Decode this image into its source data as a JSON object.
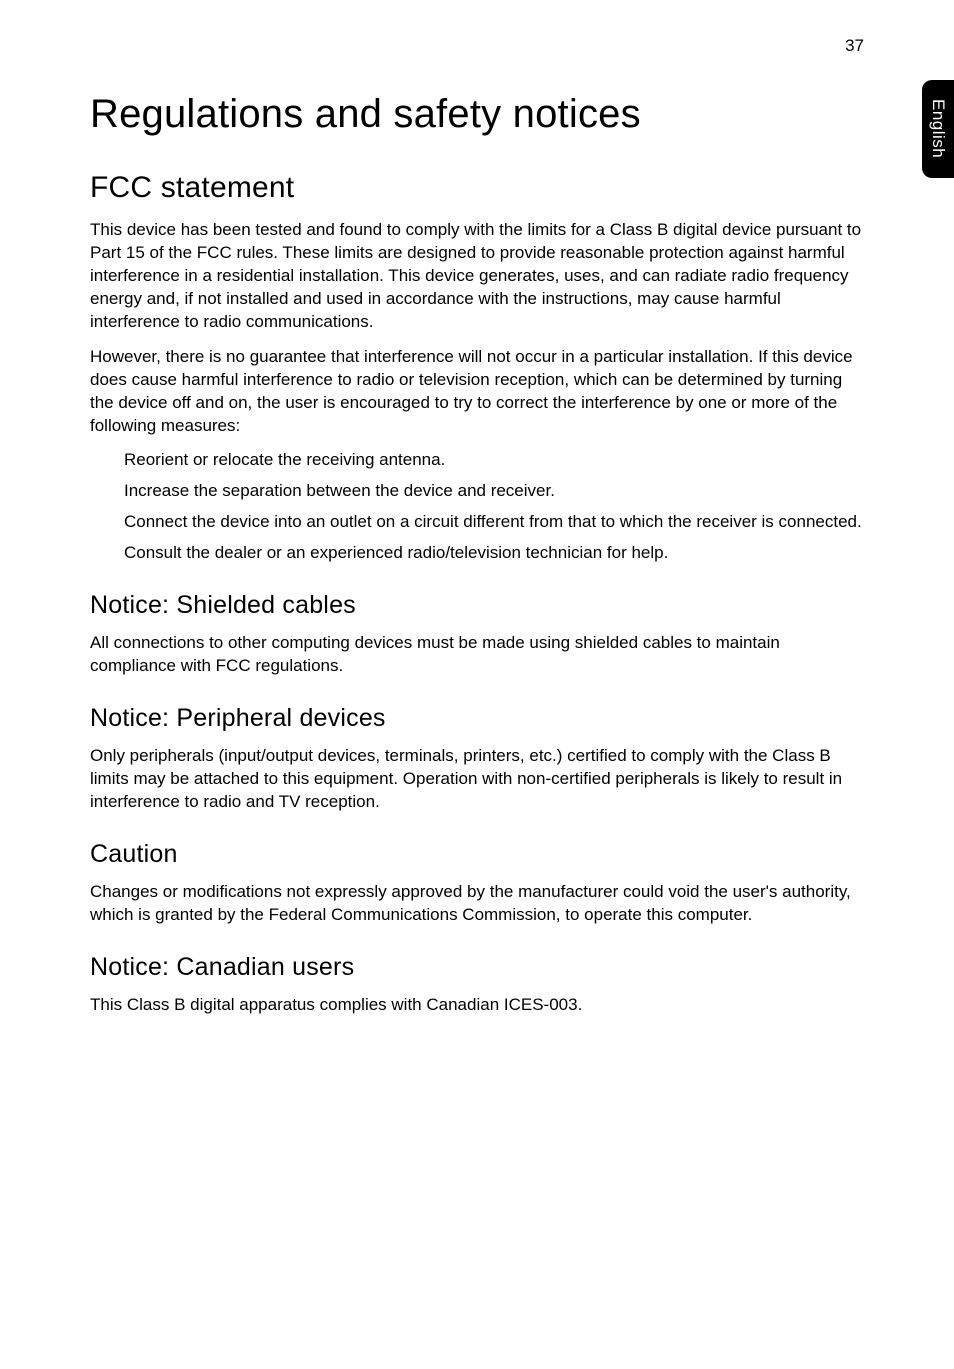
{
  "page_number": "37",
  "side_tab": "English",
  "title": "Regulations and safety notices",
  "sections": [
    {
      "heading": "FCC statement",
      "level": 2,
      "paragraphs": [
        "This device has been tested and found to comply with the limits for a Class B digital device pursuant to Part 15 of the FCC rules. These limits are designed to provide reasonable protection against harmful interference in a residential installation. This device generates, uses, and can radiate radio frequency energy and, if not installed and used in accordance with the instructions, may cause harmful interference to radio communications.",
        "However, there is no guarantee that interference will not occur in a particular installation. If this device does cause harmful interference to radio or television reception, which can be determined by turning the device off and on, the user is encouraged to try to correct the interference by one or more of the following measures:"
      ],
      "list": [
        "Reorient or relocate the receiving antenna.",
        "Increase the separation between the device and receiver.",
        "Connect the device into an outlet on a circuit different from that to which the receiver is connected.",
        "Consult the dealer or an experienced radio/television technician for help."
      ]
    },
    {
      "heading": "Notice: Shielded cables",
      "level": 3,
      "paragraphs": [
        "All connections to other computing devices must be made using shielded cables to maintain compliance with FCC regulations."
      ]
    },
    {
      "heading": "Notice: Peripheral devices",
      "level": 3,
      "paragraphs": [
        "Only peripherals (input/output devices, terminals, printers, etc.) certified to comply with the Class B limits may be attached to this equipment. Operation with non-certified peripherals is likely to result in interference to radio and TV reception."
      ]
    },
    {
      "heading": "Caution",
      "level": 3,
      "paragraphs": [
        "Changes or modifications not expressly approved by the manufacturer could void the user's authority, which is granted by the Federal Communications Commission, to operate this computer."
      ]
    },
    {
      "heading": "Notice: Canadian users",
      "level": 3,
      "paragraphs": [
        "This Class B digital apparatus complies with Canadian ICES-003."
      ]
    }
  ]
}
